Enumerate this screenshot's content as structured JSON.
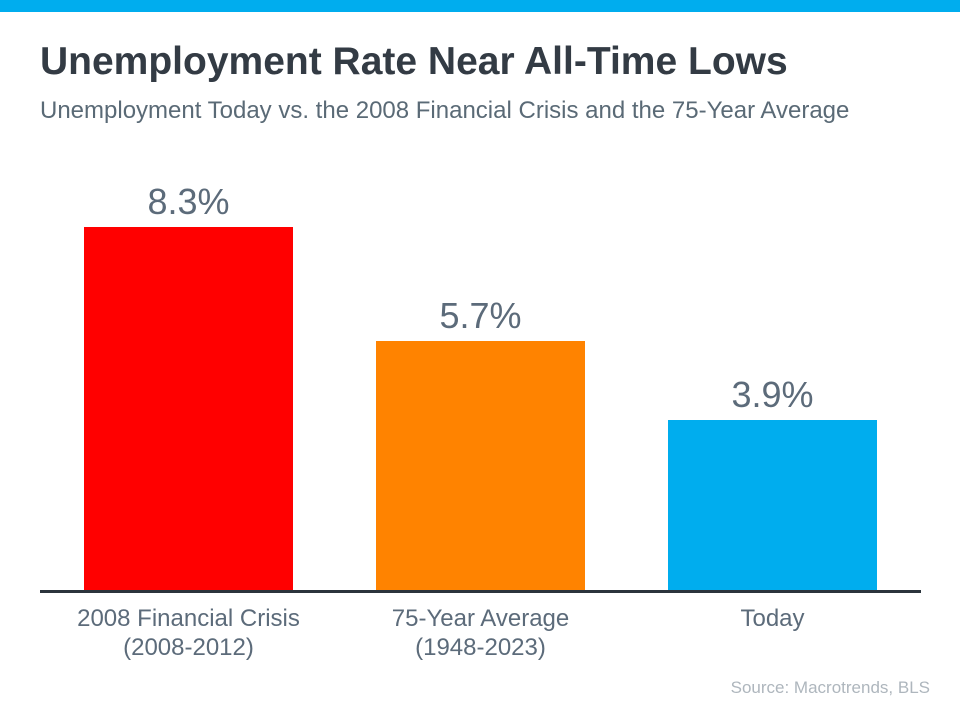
{
  "accent": {
    "top_bar_color": "#00ADEE"
  },
  "header": {
    "title": "Unemployment Rate Near All-Time Lows",
    "subtitle": "Unemployment Today vs. the 2008 Financial Crisis and the 75-Year Average"
  },
  "chart_data": {
    "type": "bar",
    "title": "Unemployment Rate Near All-Time Lows",
    "subtitle": "Unemployment Today vs. the 2008 Financial Crisis and the 75-Year Average",
    "categories": [
      "2008 Financial Crisis (2008-2012)",
      "75-Year Average (1948-2023)",
      "Today"
    ],
    "category_lines": [
      [
        "2008 Financial Crisis",
        "(2008-2012)"
      ],
      [
        "75-Year Average",
        "(1948-2023)"
      ],
      [
        "Today"
      ]
    ],
    "values": [
      8.3,
      5.7,
      3.9
    ],
    "value_labels": [
      "8.3%",
      "5.7%",
      "3.9%"
    ],
    "bar_colors": [
      "#FF0000",
      "#FF8300",
      "#00ADEE"
    ],
    "unit": "%",
    "ylim": [
      0,
      8.3
    ],
    "grid": false,
    "legend": null,
    "axis_line_color": "#2B343C",
    "label_color": "#5C6B7A"
  },
  "footer": {
    "source": "Source: Macrotrends, BLS"
  }
}
